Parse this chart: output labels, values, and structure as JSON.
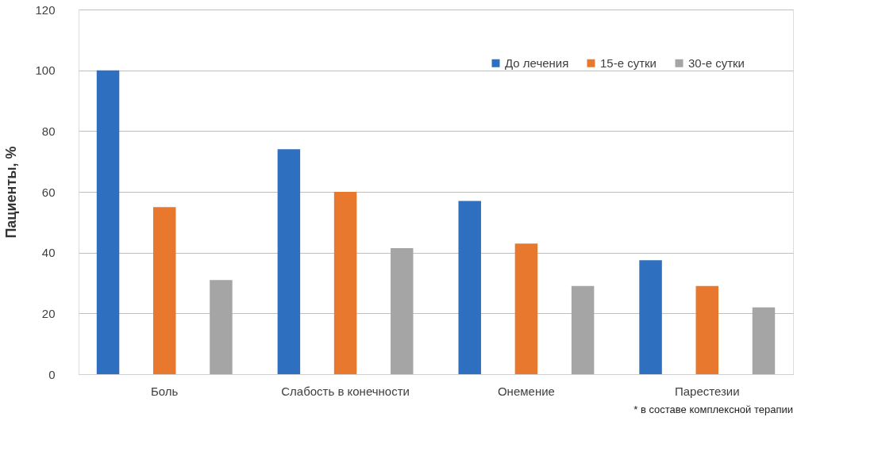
{
  "chart_data": {
    "type": "bar",
    "ylabel": "Пациенты, %",
    "categories": [
      "Боль",
      "Слабость в конечности",
      "Онемение",
      "Парестезии"
    ],
    "series": [
      {
        "name": "До лечения",
        "color": "#2e6fbf",
        "values": [
          100,
          74,
          57,
          37.5
        ]
      },
      {
        "name": "15-е сутки",
        "color": "#e9782f",
        "values": [
          55,
          60,
          43,
          29
        ]
      },
      {
        "name": "30-е сутки",
        "color": "#a5a5a5",
        "values": [
          31,
          41.5,
          29,
          22
        ]
      }
    ],
    "ylim": [
      0,
      120
    ],
    "yticks": [
      0,
      20,
      40,
      60,
      80,
      100,
      120
    ],
    "grid": "y",
    "legend": "top right",
    "annotations": [
      "* в составе комплексной терапии"
    ]
  }
}
